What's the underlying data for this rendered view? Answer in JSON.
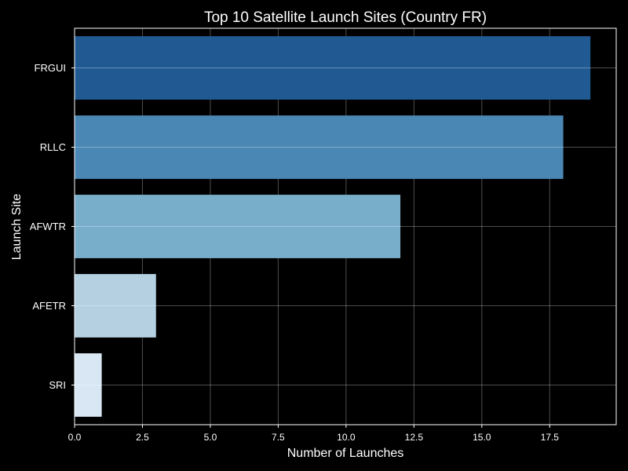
{
  "chart_data": {
    "type": "bar",
    "orientation": "horizontal",
    "title": "Top 10 Satellite Launch Sites (Country FR)",
    "xlabel": "Number of Launches",
    "ylabel": "Launch Site",
    "categories": [
      "FRGUI",
      "RLLC",
      "AFWTR",
      "AFETR",
      "SRI"
    ],
    "values": [
      19,
      18,
      12,
      3,
      1
    ],
    "bar_colors": [
      "#215a93",
      "#4a87b4",
      "#79aecb",
      "#b4d0e1",
      "#d9e7f4"
    ],
    "xlim": [
      0,
      19.95
    ],
    "xticks": [
      "0.0",
      "2.5",
      "5.0",
      "7.5",
      "10.0",
      "12.5",
      "15.0",
      "17.5"
    ],
    "grid": true,
    "background": "#000000",
    "text_color": "#ffffff"
  }
}
